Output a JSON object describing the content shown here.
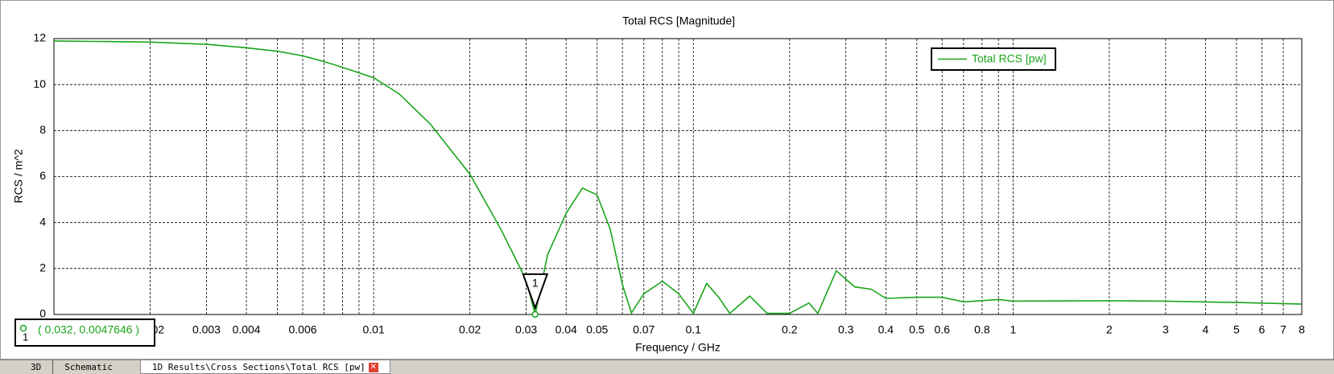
{
  "chart_data": {
    "type": "line",
    "title": "Total RCS [Magnitude]",
    "xlabel": "Frequency / GHz",
    "ylabel": "RCS / m^2",
    "xscale": "log",
    "xlim": [
      0.001,
      8
    ],
    "xticks": [
      0.002,
      0.003,
      0.004,
      0.006,
      0.01,
      0.02,
      0.03,
      0.04,
      0.05,
      0.07,
      0.1,
      0.2,
      0.3,
      0.4,
      0.5,
      0.6,
      0.8,
      1,
      2,
      3,
      4,
      5,
      6,
      7,
      8
    ],
    "xminor": [
      0.005,
      0.007,
      0.008,
      0.009,
      0.06,
      0.08,
      0.09,
      0.7,
      0.9
    ],
    "ylim": [
      0,
      12
    ],
    "yticks": [
      0,
      2,
      4,
      6,
      8,
      10,
      12
    ],
    "grid": true,
    "legend": "upper right",
    "series": [
      {
        "name": "Total RCS [pw]",
        "color": "#1aa51a",
        "x": [
          0.001,
          0.002,
          0.003,
          0.004,
          0.005,
          0.006,
          0.007,
          0.008,
          0.01,
          0.012,
          0.015,
          0.02,
          0.025,
          0.03,
          0.032,
          0.035,
          0.04,
          0.045,
          0.05,
          0.055,
          0.06,
          0.064,
          0.07,
          0.08,
          0.09,
          0.1,
          0.11,
          0.12,
          0.13,
          0.15,
          0.17,
          0.2,
          0.23,
          0.245,
          0.28,
          0.32,
          0.36,
          0.4,
          0.5,
          0.6,
          0.7,
          0.9,
          1,
          2,
          3,
          5,
          8
        ],
        "values": [
          11.9,
          11.85,
          11.75,
          11.6,
          11.45,
          11.25,
          11.0,
          10.75,
          10.3,
          9.6,
          8.3,
          6.1,
          3.7,
          1.5,
          0.0047646,
          2.6,
          4.4,
          5.5,
          5.2,
          3.7,
          1.3,
          0.07,
          0.9,
          1.45,
          0.9,
          0.05,
          1.35,
          0.75,
          0.05,
          0.8,
          0.05,
          0.05,
          0.5,
          0.05,
          1.9,
          1.2,
          1.1,
          0.7,
          0.75,
          0.75,
          0.55,
          0.65,
          0.58,
          0.6,
          0.58,
          0.52,
          0.45
        ]
      }
    ],
    "markers": [
      {
        "label": "1",
        "x": 0.032,
        "y": 0.0047646,
        "text": "( 0.032, 0.0047646 )"
      }
    ]
  },
  "tabs": [
    "3D",
    "Schematic",
    "1D Results\\Cross Sections\\Total RCS [pw]"
  ]
}
